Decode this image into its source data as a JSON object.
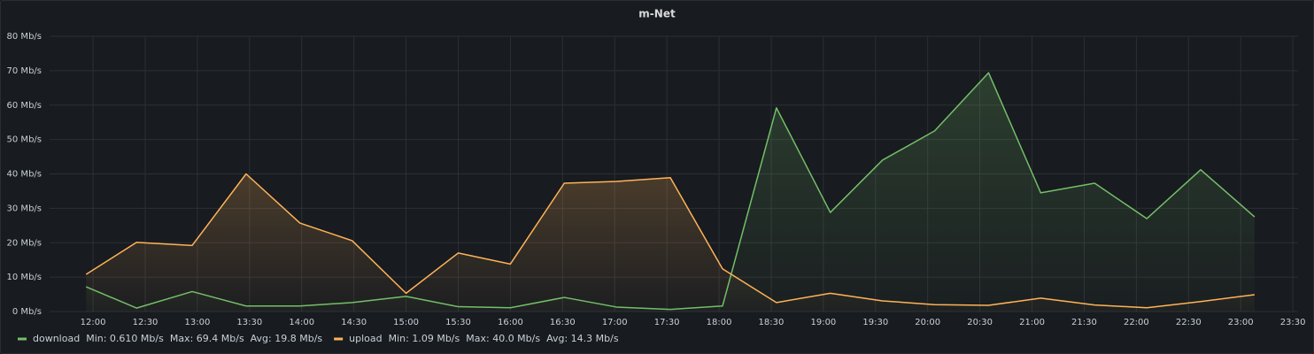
{
  "chart_data": {
    "type": "line",
    "title": "m-Net",
    "x": [
      716,
      745,
      777,
      808,
      839,
      869,
      900,
      930,
      960,
      991,
      1021,
      1052,
      1082,
      1113,
      1144,
      1174,
      1204,
      1235,
      1265,
      1296,
      1326,
      1357,
      1388
    ],
    "xlim": [
      695,
      1413
    ],
    "xticks": [
      {
        "value": 720,
        "label": "12:00"
      },
      {
        "value": 750,
        "label": "12:30"
      },
      {
        "value": 780,
        "label": "13:00"
      },
      {
        "value": 810,
        "label": "13:30"
      },
      {
        "value": 840,
        "label": "14:00"
      },
      {
        "value": 870,
        "label": "14:30"
      },
      {
        "value": 900,
        "label": "15:00"
      },
      {
        "value": 930,
        "label": "15:30"
      },
      {
        "value": 960,
        "label": "16:00"
      },
      {
        "value": 990,
        "label": "16:30"
      },
      {
        "value": 1020,
        "label": "17:00"
      },
      {
        "value": 1050,
        "label": "17:30"
      },
      {
        "value": 1080,
        "label": "18:00"
      },
      {
        "value": 1110,
        "label": "18:30"
      },
      {
        "value": 1140,
        "label": "19:00"
      },
      {
        "value": 1170,
        "label": "19:30"
      },
      {
        "value": 1200,
        "label": "20:00"
      },
      {
        "value": 1230,
        "label": "20:30"
      },
      {
        "value": 1260,
        "label": "21:00"
      },
      {
        "value": 1290,
        "label": "21:30"
      },
      {
        "value": 1320,
        "label": "22:00"
      },
      {
        "value": 1350,
        "label": "22:30"
      },
      {
        "value": 1380,
        "label": "23:00"
      },
      {
        "value": 1410,
        "label": "23:30"
      }
    ],
    "ylim": [
      0,
      80
    ],
    "yticks": [
      {
        "value": 0,
        "label": "0 Mb/s"
      },
      {
        "value": 10,
        "label": "10 Mb/s"
      },
      {
        "value": 20,
        "label": "20 Mb/s"
      },
      {
        "value": 30,
        "label": "30 Mb/s"
      },
      {
        "value": 40,
        "label": "40 Mb/s"
      },
      {
        "value": 50,
        "label": "50 Mb/s"
      },
      {
        "value": 60,
        "label": "60 Mb/s"
      },
      {
        "value": 70,
        "label": "70 Mb/s"
      },
      {
        "value": 80,
        "label": "80 Mb/s"
      }
    ],
    "grid": true,
    "fill": true,
    "series": [
      {
        "name": "download",
        "color": "#73bf69",
        "values": [
          7.2,
          1.0,
          5.8,
          1.6,
          1.6,
          2.6,
          4.4,
          1.4,
          1.1,
          4.1,
          1.3,
          0.61,
          1.6,
          59.2,
          28.8,
          44.0,
          52.5,
          69.4,
          34.5,
          37.3,
          27.0,
          41.2,
          27.5
        ],
        "stats": [
          "Min: 0.610 Mb/s",
          "Max: 69.4 Mb/s",
          "Avg: 19.8 Mb/s"
        ]
      },
      {
        "name": "upload",
        "color": "#ffb357",
        "values": [
          10.8,
          20.1,
          19.2,
          40.0,
          25.7,
          20.6,
          5.3,
          17.0,
          13.8,
          37.3,
          37.8,
          38.9,
          12.4,
          2.6,
          5.3,
          3.1,
          2.0,
          1.8,
          3.9,
          1.9,
          1.09,
          2.9,
          4.9
        ],
        "stats": [
          "Min: 1.09 Mb/s",
          "Max: 40.0 Mb/s",
          "Avg: 14.3 Mb/s"
        ]
      }
    ]
  }
}
